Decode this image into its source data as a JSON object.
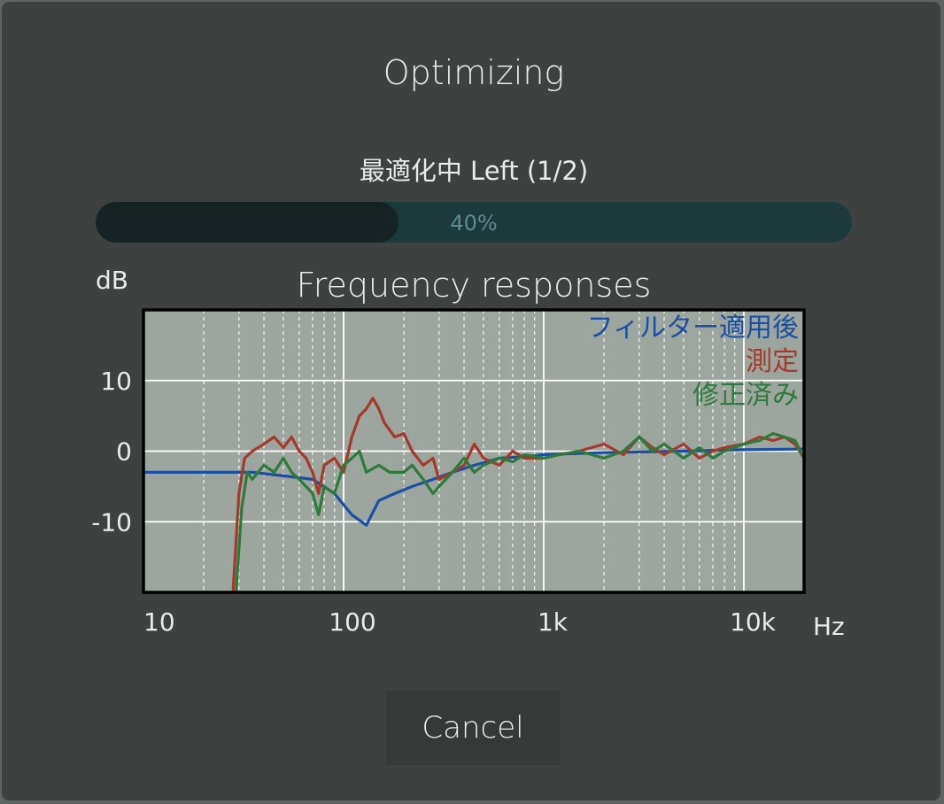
{
  "dialog": {
    "title": "Optimizing",
    "status": "最適化中 Left (1/2)",
    "cancel_label": "Cancel"
  },
  "progress": {
    "value_fraction": 0.4,
    "label": "40%",
    "fill_color": "#162223",
    "track_color": "#1c3a3c",
    "text_color": "#5c8c90"
  },
  "chart_data": {
    "type": "line",
    "title": "Frequency responses",
    "ylabel": "dB",
    "xlabel": "Hz",
    "xscale": "log",
    "xlim": [
      10,
      20000
    ],
    "ylim": [
      -20,
      20
    ],
    "xticks": [
      {
        "value": 10,
        "label": "10"
      },
      {
        "value": 100,
        "label": "100"
      },
      {
        "value": 1000,
        "label": "1k"
      },
      {
        "value": 10000,
        "label": "10k"
      }
    ],
    "yticks": [
      {
        "value": 10,
        "label": "10"
      },
      {
        "value": 0,
        "label": "0"
      },
      {
        "value": -10,
        "label": "-10"
      }
    ],
    "grid": true,
    "legend_placement": "top-right",
    "background": "#9ca59e",
    "series": [
      {
        "name": "フィルター適用後",
        "color": "#1c4fa0",
        "points": [
          [
            10,
            -3
          ],
          [
            20,
            -3
          ],
          [
            35,
            -3
          ],
          [
            50,
            -3.5
          ],
          [
            70,
            -4
          ],
          [
            90,
            -6
          ],
          [
            110,
            -9
          ],
          [
            130,
            -10.5
          ],
          [
            150,
            -7
          ],
          [
            180,
            -6
          ],
          [
            220,
            -5
          ],
          [
            280,
            -4
          ],
          [
            350,
            -3
          ],
          [
            450,
            -2
          ],
          [
            600,
            -1
          ],
          [
            800,
            -0.8
          ],
          [
            1000,
            -0.5
          ],
          [
            2000,
            -0.2
          ],
          [
            5000,
            0
          ],
          [
            10000,
            0.2
          ],
          [
            20000,
            0.3
          ]
        ]
      },
      {
        "name": "測定",
        "color": "#a33a2e",
        "points": [
          [
            28,
            -20
          ],
          [
            30,
            -6
          ],
          [
            32,
            -1
          ],
          [
            35,
            0
          ],
          [
            40,
            1
          ],
          [
            45,
            2
          ],
          [
            50,
            0.5
          ],
          [
            55,
            2
          ],
          [
            60,
            0
          ],
          [
            65,
            -1
          ],
          [
            70,
            -3
          ],
          [
            75,
            -6
          ],
          [
            80,
            -2
          ],
          [
            90,
            -1
          ],
          [
            100,
            -3
          ],
          [
            110,
            2
          ],
          [
            120,
            5
          ],
          [
            130,
            6
          ],
          [
            140,
            7.5
          ],
          [
            150,
            6
          ],
          [
            160,
            4
          ],
          [
            180,
            2
          ],
          [
            200,
            2.5
          ],
          [
            220,
            0
          ],
          [
            250,
            -2
          ],
          [
            280,
            -1
          ],
          [
            300,
            -4
          ],
          [
            350,
            -3
          ],
          [
            400,
            -2
          ],
          [
            450,
            1
          ],
          [
            500,
            -1
          ],
          [
            600,
            -2
          ],
          [
            700,
            0
          ],
          [
            800,
            -1
          ],
          [
            1000,
            -1
          ],
          [
            1200,
            -0.5
          ],
          [
            1500,
            0
          ],
          [
            2000,
            1
          ],
          [
            2500,
            -0.5
          ],
          [
            3000,
            2
          ],
          [
            3500,
            0.5
          ],
          [
            4000,
            -0.5
          ],
          [
            5000,
            1
          ],
          [
            6000,
            -1
          ],
          [
            7000,
            0
          ],
          [
            8000,
            0.5
          ],
          [
            10000,
            1
          ],
          [
            12000,
            2
          ],
          [
            14000,
            1.5
          ],
          [
            16000,
            2
          ],
          [
            18000,
            1
          ],
          [
            20000,
            -1
          ]
        ]
      },
      {
        "name": "修正済み",
        "color": "#2e7a3c",
        "points": [
          [
            29,
            -20
          ],
          [
            31,
            -8
          ],
          [
            33,
            -3
          ],
          [
            35,
            -4
          ],
          [
            40,
            -2
          ],
          [
            45,
            -3
          ],
          [
            50,
            -1
          ],
          [
            55,
            -3
          ],
          [
            60,
            -4
          ],
          [
            70,
            -6
          ],
          [
            75,
            -9
          ],
          [
            80,
            -5
          ],
          [
            90,
            -6
          ],
          [
            100,
            -2
          ],
          [
            110,
            -1
          ],
          [
            120,
            0
          ],
          [
            130,
            -3
          ],
          [
            150,
            -2
          ],
          [
            170,
            -3
          ],
          [
            200,
            -3
          ],
          [
            220,
            -2
          ],
          [
            250,
            -4
          ],
          [
            280,
            -6
          ],
          [
            300,
            -5
          ],
          [
            350,
            -3
          ],
          [
            400,
            -1
          ],
          [
            450,
            -3
          ],
          [
            500,
            -2
          ],
          [
            600,
            -1
          ],
          [
            700,
            -1.5
          ],
          [
            800,
            -0.5
          ],
          [
            1000,
            -1
          ],
          [
            1200,
            -0.5
          ],
          [
            1500,
            0
          ],
          [
            2000,
            -1
          ],
          [
            2500,
            0
          ],
          [
            3000,
            2
          ],
          [
            3500,
            0
          ],
          [
            4000,
            1
          ],
          [
            5000,
            -1
          ],
          [
            6000,
            0.5
          ],
          [
            7000,
            -1
          ],
          [
            8000,
            0
          ],
          [
            10000,
            1
          ],
          [
            12000,
            1.5
          ],
          [
            14000,
            2.5
          ],
          [
            16000,
            2
          ],
          [
            18000,
            1.5
          ],
          [
            20000,
            -1
          ]
        ]
      }
    ]
  }
}
